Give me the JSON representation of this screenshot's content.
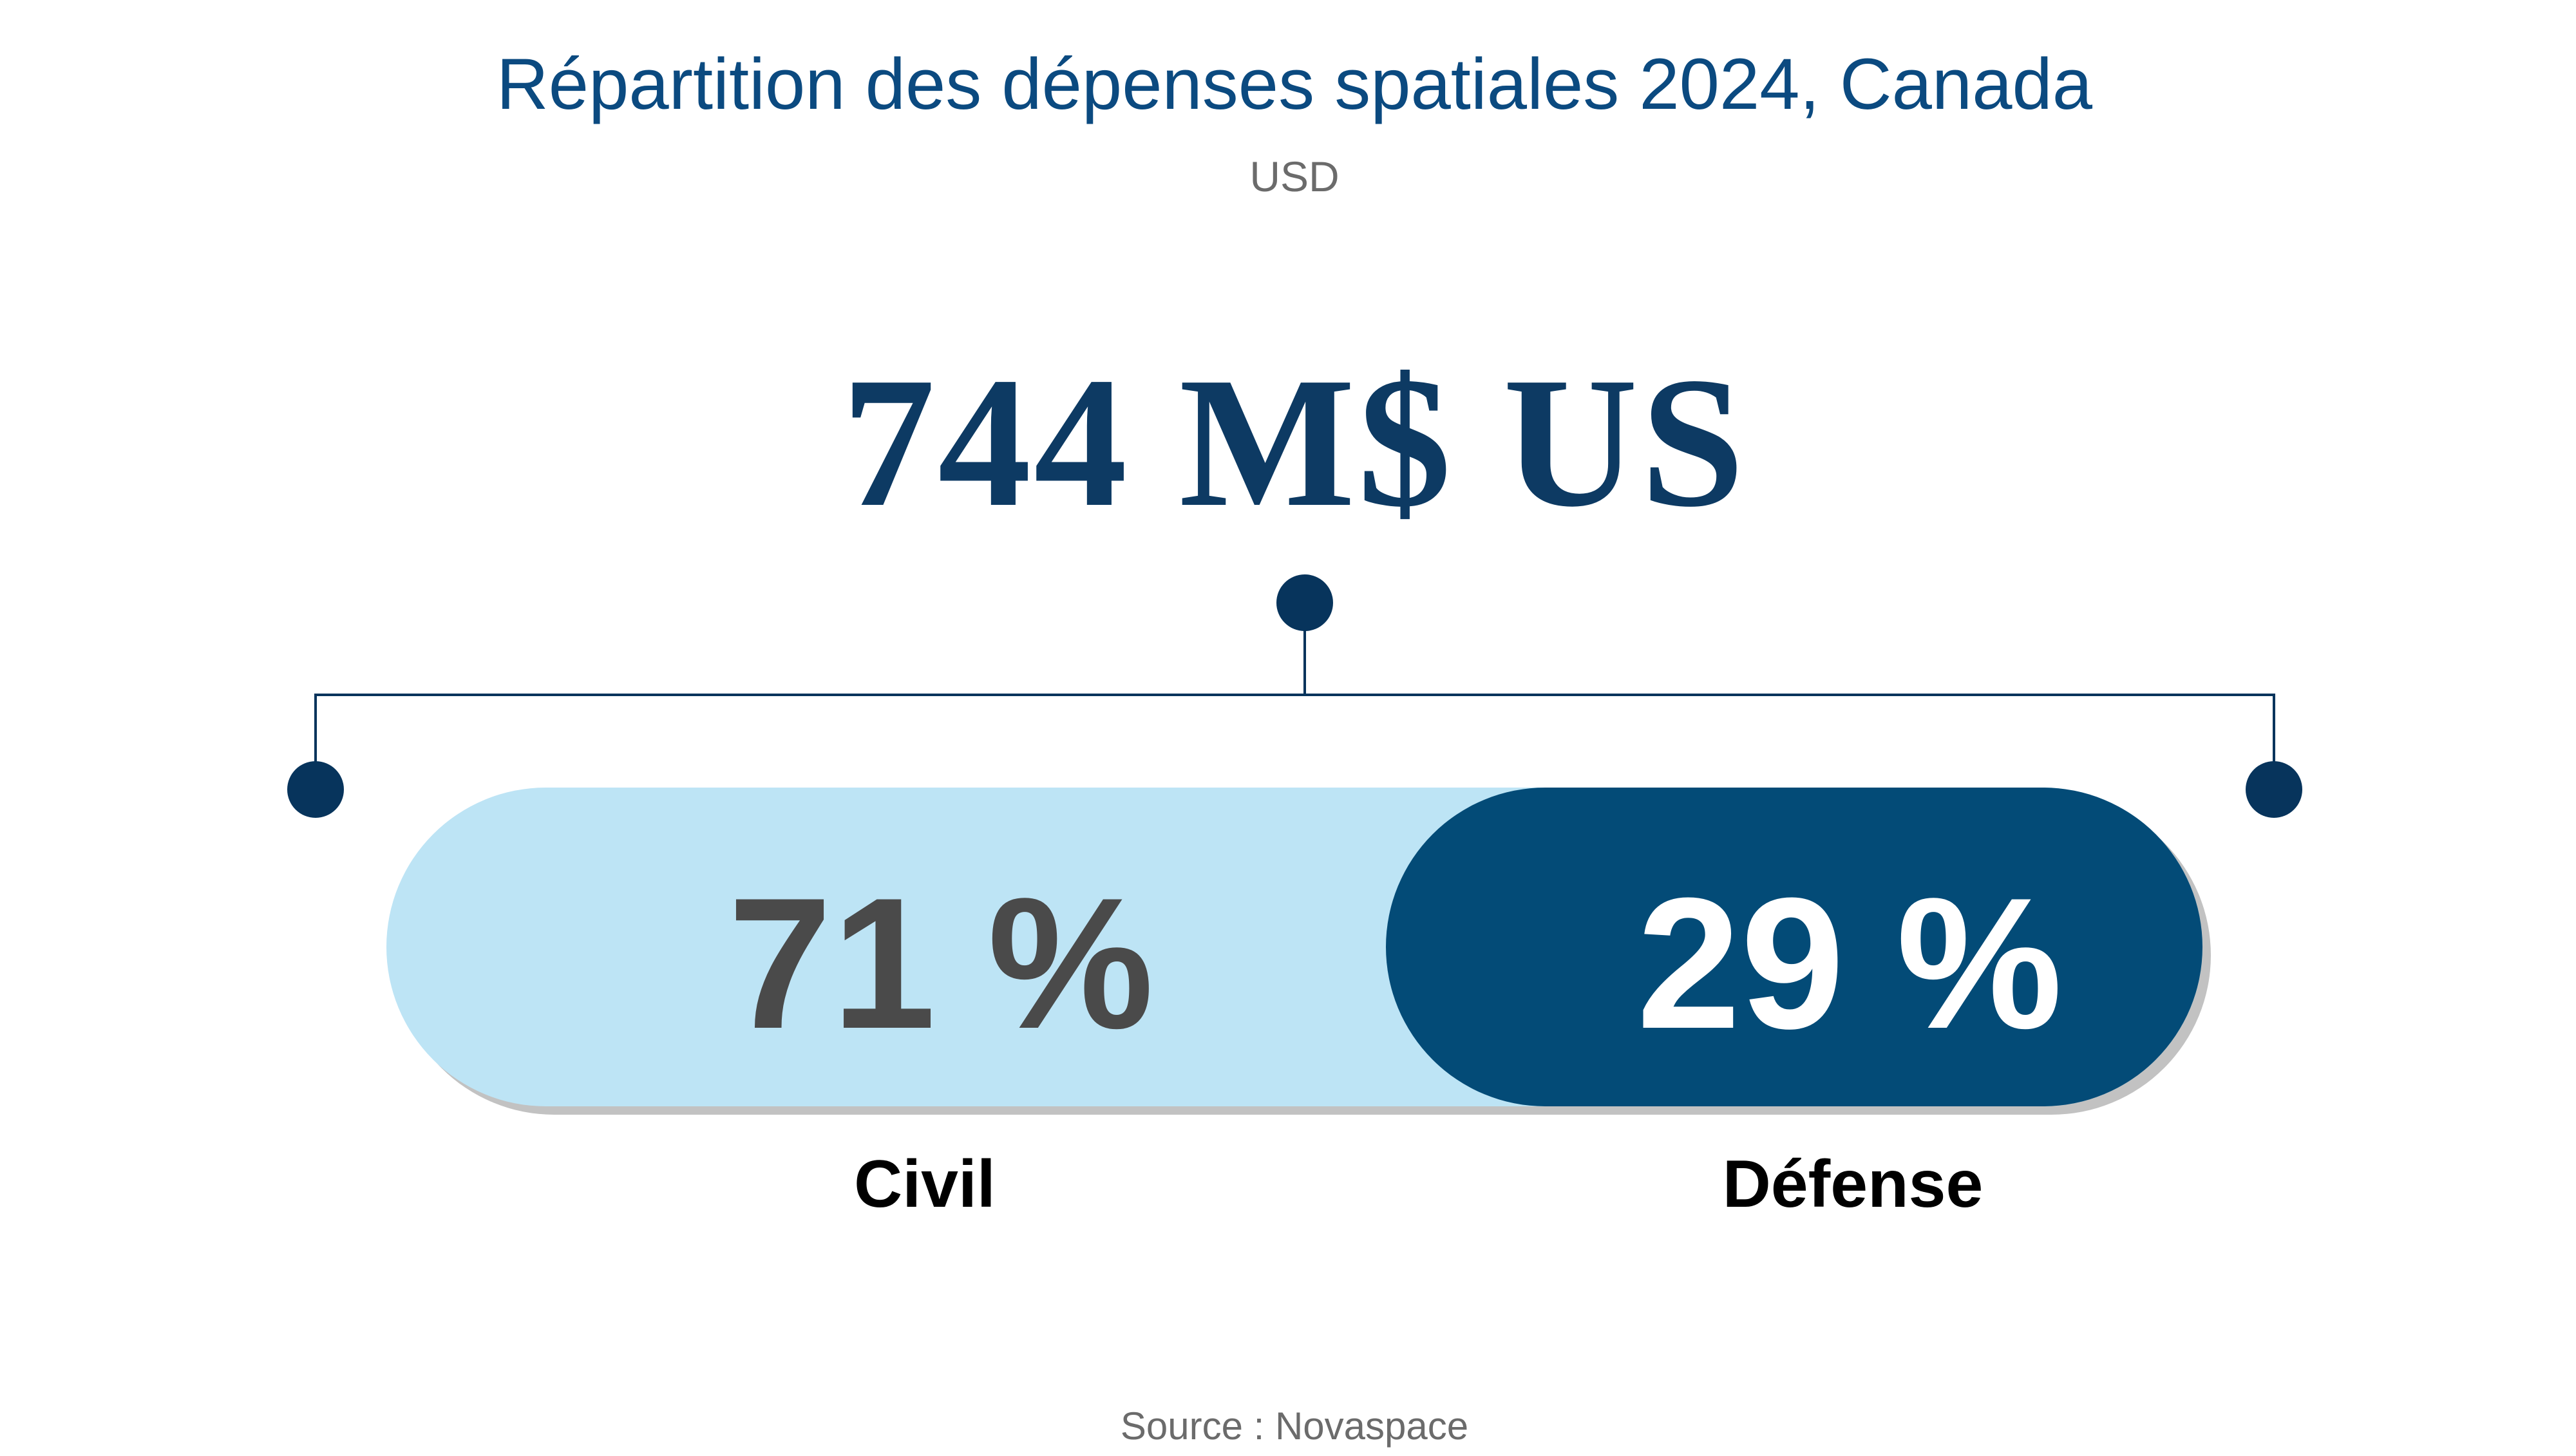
{
  "chart_data": {
    "type": "bar",
    "title": "Répartition des dépenses spatiales 2024, Canada",
    "subtitle": "USD",
    "total_label": "744 M$ US",
    "categories": [
      "Civil",
      "Défense"
    ],
    "values": [
      71,
      29
    ],
    "value_labels": [
      "71 %",
      "29 %"
    ],
    "unit": "%",
    "source": "Source : Novaspace",
    "colors": {
      "Civil": "#bde4f5",
      "Défense": "#034b77"
    }
  }
}
